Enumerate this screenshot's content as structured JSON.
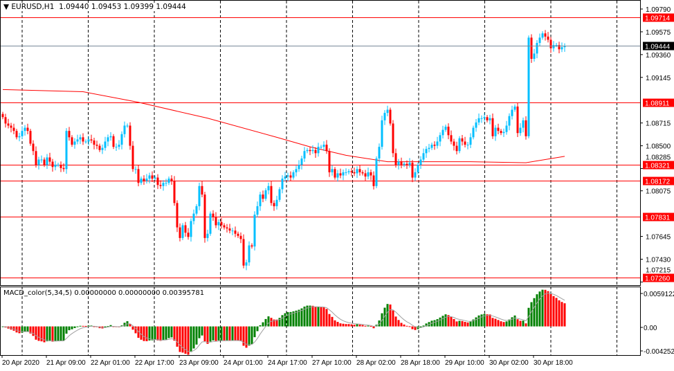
{
  "header": {
    "symbol": "EURUSD,H1",
    "open": "1.09440",
    "high": "1.09453",
    "low": "1.09399",
    "close": "1.09444"
  },
  "indicator": {
    "label": "MACD_color(5,34,5) 0.00000000 0.00000000 0.00395781"
  },
  "colors": {
    "bull": "#00BFFF",
    "bear": "#FF0000",
    "level": "#FF0000",
    "current": "#778899",
    "macd_up": "#008000",
    "macd_down": "#FF0000",
    "ma": "#FF0000",
    "signal": "#A0A0A0"
  },
  "chart_data": {
    "type": "candlestick",
    "price_axis": {
      "ticks": [
        "1.09790",
        "1.09575",
        "1.09360",
        "1.09145",
        "1.08715",
        "1.08500",
        "1.08285",
        "1.08075",
        "1.07645",
        "1.07430",
        "1.07215"
      ],
      "range": [
        1.07185,
        1.09875
      ]
    },
    "time_axis": {
      "ticks": [
        "20 Apr 2020",
        "21 Apr 09:00",
        "22 Apr 01:00",
        "22 Apr 17:00",
        "23 Apr 09:00",
        "24 Apr 01:00",
        "24 Apr 17:00",
        "27 Apr 10:00",
        "28 Apr 02:00",
        "28 Apr 18:00",
        "29 Apr 10:00",
        "30 Apr 02:00",
        "30 Apr 18:00"
      ],
      "bars_per_tick": 16
    },
    "levels": [
      "1.09714",
      "1.08911",
      "1.08321",
      "1.08172",
      "1.07831",
      "1.07260"
    ],
    "current_price": "1.09444",
    "close": [
      1.0877,
      1.0871,
      1.0869,
      1.0867,
      1.0864,
      1.0858,
      1.0859,
      1.0864,
      1.0867,
      1.0864,
      1.0852,
      1.0845,
      1.0832,
      1.0837,
      1.0837,
      1.0832,
      1.0839,
      1.0835,
      1.083,
      1.0832,
      1.0832,
      1.0829,
      1.0828,
      1.0864,
      1.0858,
      1.0851,
      1.0854,
      1.0856,
      1.0858,
      1.0854,
      1.0854,
      1.0856,
      1.0855,
      1.0851,
      1.085,
      1.0846,
      1.0848,
      1.0854,
      1.0858,
      1.0859,
      1.0849,
      1.0849,
      1.0851,
      1.0861,
      1.0869,
      1.0869,
      1.085,
      1.0828,
      1.0828,
      1.0815,
      1.0819,
      1.0817,
      1.0819,
      1.0822,
      1.0819,
      1.082,
      1.0813,
      1.0812,
      1.0815,
      1.0815,
      1.0819,
      1.0817,
      1.0796,
      1.0773,
      1.0763,
      1.0775,
      1.0768,
      1.0764,
      1.0779,
      1.0786,
      1.0793,
      1.0812,
      1.0804,
      1.0763,
      1.0767,
      1.0786,
      1.0783,
      1.0775,
      1.0778,
      1.0775,
      1.0773,
      1.0772,
      1.077,
      1.077,
      1.0767,
      1.0765,
      1.0762,
      1.0737,
      1.074,
      1.0756,
      1.0755,
      1.0785,
      1.0793,
      1.0804,
      1.08,
      1.0808,
      1.0812,
      1.0796,
      1.0793,
      1.0799,
      1.0809,
      1.0819,
      1.0821,
      1.0822,
      1.082,
      1.0825,
      1.0828,
      1.0832,
      1.0838,
      1.0845,
      1.0846,
      1.0845,
      1.0846,
      1.0843,
      1.0849,
      1.0849,
      1.0851,
      1.0845,
      1.0825,
      1.0828,
      1.082,
      1.0824,
      1.0822,
      1.0825,
      1.0825,
      1.0826,
      1.0825,
      1.0824,
      1.0828,
      1.0825,
      1.0824,
      1.0821,
      1.0825,
      1.0822,
      1.0812,
      1.0838,
      1.0849,
      1.0874,
      1.0881,
      1.0884,
      1.0871,
      1.0843,
      1.0832,
      1.0835,
      1.0832,
      1.0833,
      1.0832,
      1.0834,
      1.082,
      1.0825,
      1.0832,
      1.0837,
      1.0843,
      1.0847,
      1.0848,
      1.0851,
      1.085,
      1.0854,
      1.086,
      1.0865,
      1.0868,
      1.086,
      1.0854,
      1.085,
      1.0845,
      1.0857,
      1.0854,
      1.0851,
      1.0851,
      1.0858,
      1.0867,
      1.0872,
      1.0876,
      1.0876,
      1.0877,
      1.0874,
      1.0876,
      1.0859,
      1.0867,
      1.0864,
      1.0862,
      1.0863,
      1.0869,
      1.0878,
      1.0884,
      1.0887,
      1.0862,
      1.0867,
      1.0874,
      1.0859,
      1.0952,
      1.0932,
      1.0937,
      1.0947,
      1.0952,
      1.0956,
      1.0953,
      1.095,
      1.0942,
      1.0945,
      1.0945,
      1.0941,
      1.0943,
      1.0944
    ],
    "moving_average": [
      {
        "bar": 0,
        "value": 1.0903
      },
      {
        "bar": 29,
        "value": 1.0901
      },
      {
        "bar": 49,
        "value": 1.0891
      },
      {
        "bar": 74,
        "value": 1.0876
      },
      {
        "bar": 99,
        "value": 1.0858
      },
      {
        "bar": 111,
        "value": 1.0849
      },
      {
        "bar": 124,
        "value": 1.0841
      },
      {
        "bar": 139,
        "value": 1.0835
      },
      {
        "bar": 169,
        "value": 1.0835
      },
      {
        "bar": 189,
        "value": 1.0834
      },
      {
        "bar": 203,
        "value": 1.084
      }
    ],
    "macd": {
      "fast": 5,
      "slow": 34,
      "signal": 5,
      "axis_ticks": [
        "0.0059122",
        "0.00",
        "-0.004252"
      ],
      "range": [
        -0.004252,
        0.0059122
      ]
    }
  }
}
